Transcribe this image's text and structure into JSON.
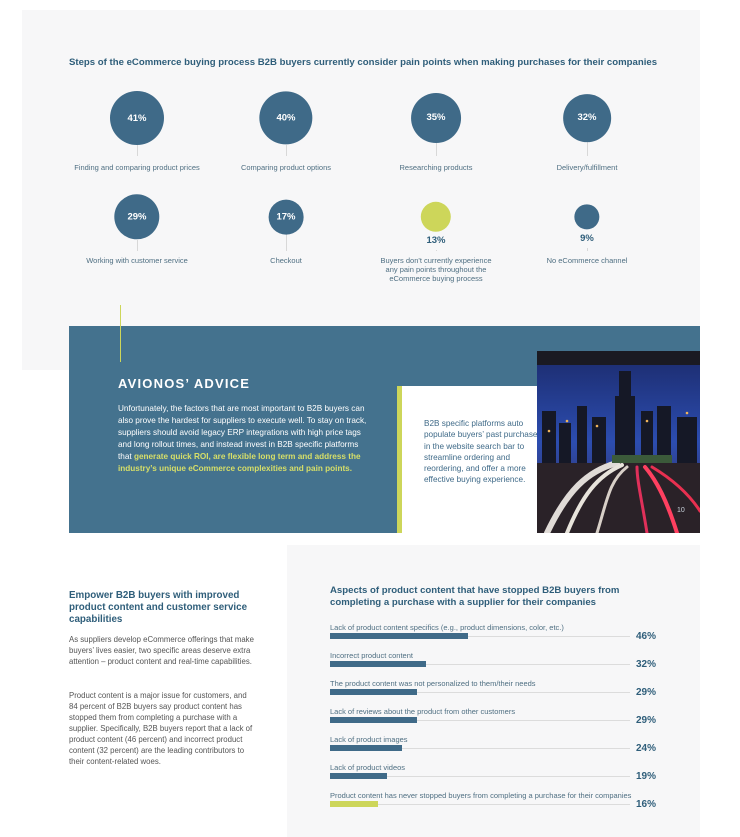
{
  "pain_points": {
    "title": "Steps of the eCommerce buying process B2B buyers currently consider pain points when making purchases for their companies",
    "items": [
      {
        "value": "41%",
        "label": "Finding and comparing product prices",
        "percent": 41
      },
      {
        "value": "40%",
        "label": "Comparing product options",
        "percent": 40
      },
      {
        "value": "35%",
        "label": "Researching products",
        "percent": 35
      },
      {
        "value": "32%",
        "label": "Delivery/fulfillment",
        "percent": 32
      },
      {
        "value": "29%",
        "label": "Working with customer service",
        "percent": 29
      },
      {
        "value": "17%",
        "label": "Checkout",
        "percent": 17
      },
      {
        "value": "13%",
        "label": "Buyers don't currently experience any pain points throughout the eCommerce buying process",
        "percent": 13
      },
      {
        "value": "9%",
        "label": "No eCommerce channel",
        "percent": 9
      }
    ],
    "colors": {
      "primary": "#3f6a88",
      "highlight": "#cdd65a"
    }
  },
  "advice": {
    "heading": "AVIONOS’ ADVICE",
    "body": "Unfortunately, the factors that are most important to B2B buyers can also prove the hardest for suppliers to execute well. To stay on track, suppliers should avoid legacy ERP integrations with high price tags and long rollout times, and instead invest in B2B specific platforms that ",
    "body_highlight": "generate quick ROI, are flexible long term and address the industry’s unique eCommerce complexities and pain points.",
    "callout": "B2B specific platforms auto populate buyers’ past purchases in the website search bar to streamline ordering and reordering, and offer a more effective buying experience.",
    "page_number": "10",
    "background": "#44728e"
  },
  "empower": {
    "heading": "Empower B2B buyers with improved product content and customer service capabilities",
    "paragraphs": [
      "As suppliers develop eCommerce offerings that make buyers’ lives easier, two specific areas deserve extra attention – product content and real-time capabilities.",
      "Product content is a major issue for customers, and 84 percent of B2B buyers say product content has stopped them from completing a purchase with a supplier. Specifically, B2B buyers report that a lack of product content (46 percent) and incorrect product content (32 percent) are the leading contributors to their content-related woes."
    ]
  },
  "product_content": {
    "title": "Aspects of product content that have stopped B2B buyers from completing a purchase with a supplier for their companies",
    "rows": [
      {
        "label": "Lack of product content specifics (e.g., product dimensions, color, etc.)",
        "value": "46%",
        "percent": 46
      },
      {
        "label": "Incorrect product content",
        "value": "32%",
        "percent": 32
      },
      {
        "label": "The product content was not personalized to them/their needs",
        "value": "29%",
        "percent": 29
      },
      {
        "label": "Lack of reviews about the product from other customers",
        "value": "29%",
        "percent": 29
      },
      {
        "label": "Lack of product images",
        "value": "24%",
        "percent": 24
      },
      {
        "label": "Lack of product videos",
        "value": "19%",
        "percent": 19
      },
      {
        "label": "Product content has never stopped buyers from completing a purchase for their companies",
        "value": "16%",
        "percent": 16,
        "highlight": true
      }
    ]
  }
}
